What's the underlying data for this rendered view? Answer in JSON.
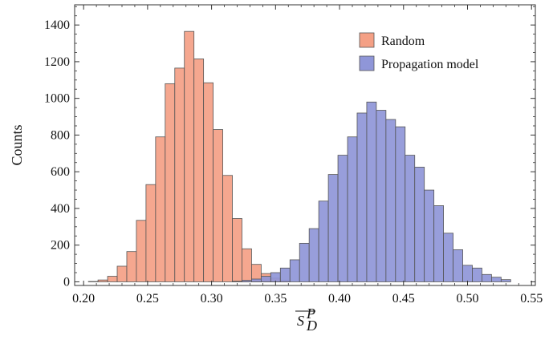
{
  "chart_data": {
    "type": "bar",
    "subtype": "histogram",
    "ylabel": "Counts",
    "xlabel_base": "S",
    "xlabel_superscript": "P",
    "xlabel_subscript": "D",
    "xlabel_overline": true,
    "xlim": [
      0.193,
      0.553
    ],
    "ylim": [
      -20,
      1510
    ],
    "xticks": [
      "0.20",
      "0.25",
      "0.30",
      "0.35",
      "0.40",
      "0.45",
      "0.50",
      "0.55"
    ],
    "yticks": [
      "0",
      "200",
      "400",
      "600",
      "800",
      "1000",
      "1200",
      "1400"
    ],
    "bin_width": 0.0075,
    "grid": false,
    "legend_position": "top-right",
    "series": [
      {
        "name": "Random",
        "color": "#f4a085",
        "bins": [
          {
            "x": 0.2075,
            "y": 2
          },
          {
            "x": 0.215,
            "y": 10
          },
          {
            "x": 0.2225,
            "y": 30
          },
          {
            "x": 0.23,
            "y": 85
          },
          {
            "x": 0.2375,
            "y": 165
          },
          {
            "x": 0.245,
            "y": 335
          },
          {
            "x": 0.2525,
            "y": 530
          },
          {
            "x": 0.26,
            "y": 790
          },
          {
            "x": 0.2675,
            "y": 1080
          },
          {
            "x": 0.275,
            "y": 1165
          },
          {
            "x": 0.2825,
            "y": 1365
          },
          {
            "x": 0.29,
            "y": 1215
          },
          {
            "x": 0.2975,
            "y": 1085
          },
          {
            "x": 0.305,
            "y": 830
          },
          {
            "x": 0.3125,
            "y": 580
          },
          {
            "x": 0.32,
            "y": 345
          },
          {
            "x": 0.3275,
            "y": 180
          },
          {
            "x": 0.335,
            "y": 95
          },
          {
            "x": 0.3425,
            "y": 45
          },
          {
            "x": 0.35,
            "y": 20
          },
          {
            "x": 0.3575,
            "y": 8
          }
        ]
      },
      {
        "name": "Propagation model",
        "color": "#8f96d8",
        "bins": [
          {
            "x": 0.32,
            "y": 3
          },
          {
            "x": 0.3275,
            "y": 8
          },
          {
            "x": 0.335,
            "y": 15
          },
          {
            "x": 0.3425,
            "y": 30
          },
          {
            "x": 0.35,
            "y": 50
          },
          {
            "x": 0.3575,
            "y": 75
          },
          {
            "x": 0.365,
            "y": 120
          },
          {
            "x": 0.3725,
            "y": 210
          },
          {
            "x": 0.38,
            "y": 290
          },
          {
            "x": 0.3875,
            "y": 440
          },
          {
            "x": 0.395,
            "y": 585
          },
          {
            "x": 0.4025,
            "y": 690
          },
          {
            "x": 0.41,
            "y": 790
          },
          {
            "x": 0.4175,
            "y": 920
          },
          {
            "x": 0.425,
            "y": 980
          },
          {
            "x": 0.4325,
            "y": 935
          },
          {
            "x": 0.44,
            "y": 885
          },
          {
            "x": 0.4475,
            "y": 845
          },
          {
            "x": 0.455,
            "y": 690
          },
          {
            "x": 0.4625,
            "y": 625
          },
          {
            "x": 0.47,
            "y": 500
          },
          {
            "x": 0.4775,
            "y": 415
          },
          {
            "x": 0.485,
            "y": 265
          },
          {
            "x": 0.4925,
            "y": 175
          },
          {
            "x": 0.5,
            "y": 90
          },
          {
            "x": 0.5075,
            "y": 75
          },
          {
            "x": 0.515,
            "y": 40
          },
          {
            "x": 0.5225,
            "y": 25
          },
          {
            "x": 0.53,
            "y": 12
          }
        ]
      }
    ]
  }
}
